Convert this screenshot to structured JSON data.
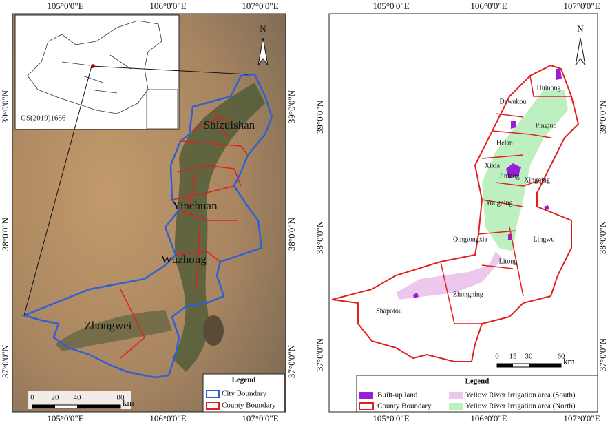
{
  "left_map": {
    "lon_labels": [
      "105°0'0\"E",
      "106°0'0\"E",
      "107°0'0\"E"
    ],
    "lat_labels": [
      "39°0'0\"N",
      "38°0'0\"N",
      "37°0'0\"N"
    ],
    "inset_label": "GS(2019)1686",
    "north": "N",
    "cities": [
      "Shizuishan",
      "Yinchuan",
      "Wuzhong",
      "Zhongwei"
    ],
    "legend": {
      "title": "Legend",
      "items": [
        "City Boundary",
        "County Boundary"
      ]
    },
    "scale": {
      "ticks": [
        0,
        20,
        40,
        80
      ],
      "unit": "km"
    }
  },
  "right_map": {
    "lon_labels": [
      "105°0'0\"E",
      "106°0'0\"E",
      "107°0'0\"E"
    ],
    "lat_labels": [
      "39°0'0\"N",
      "38°0'0\"N",
      "37°0'0\"N"
    ],
    "north": "N",
    "counties": [
      "Huinong",
      "Dawukou",
      "Pingluo",
      "Helan",
      "Xixia",
      "Jinfeng",
      "Xingqing",
      "Yongning",
      "Qingtongxia",
      "Lingwu",
      "Litong",
      "Zhongning",
      "Shapotou"
    ],
    "legend": {
      "title": "Legend",
      "items": [
        "Built-up land",
        "County Boundary",
        "Yellow River Irrigation area (South)",
        "Yellow River Irrigation area (North)"
      ]
    },
    "scale": {
      "ticks": [
        0,
        15,
        30,
        60
      ],
      "unit": "km"
    }
  }
}
